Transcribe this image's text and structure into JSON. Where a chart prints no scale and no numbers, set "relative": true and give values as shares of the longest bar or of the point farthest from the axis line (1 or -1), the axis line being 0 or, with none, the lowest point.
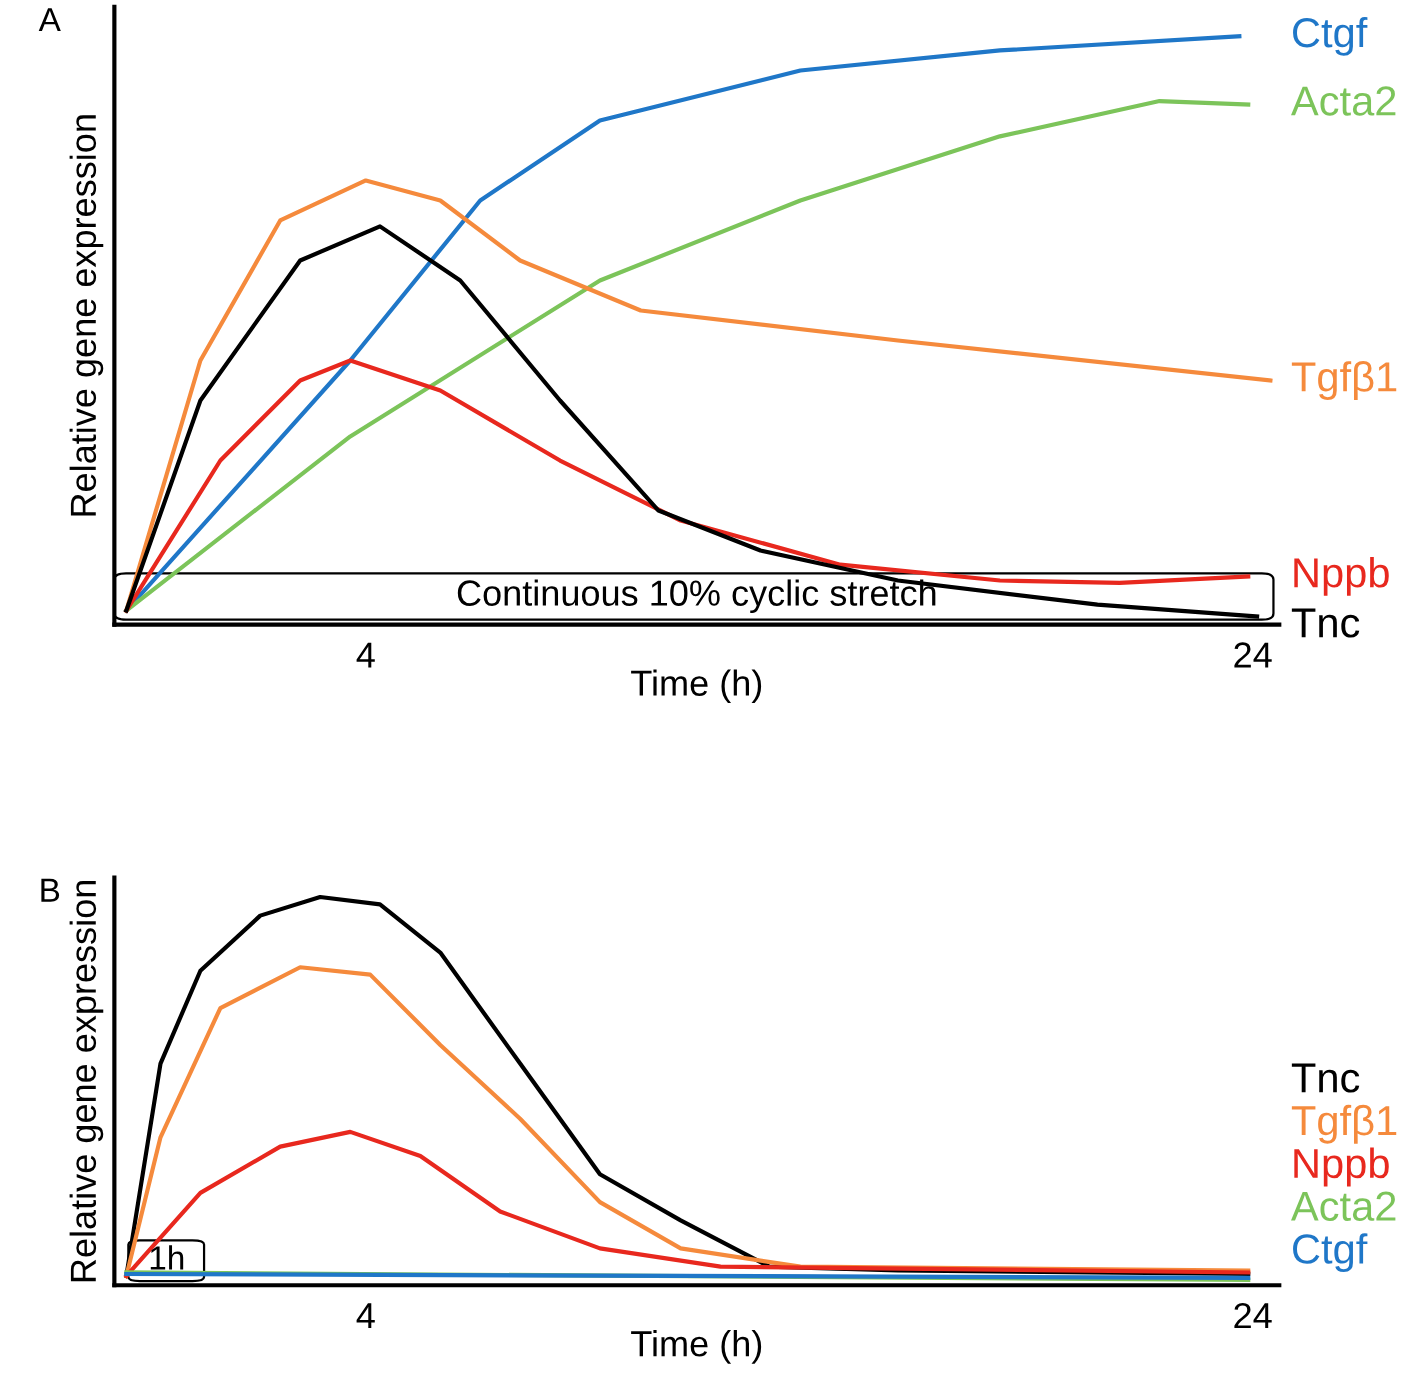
{
  "chart_data": [
    {
      "type": "line",
      "title": "A",
      "xlabel": "Time (h)",
      "ylabel": "Relative gene expression",
      "relative": true,
      "xlim": [
        -1.67,
        24.6
      ],
      "xticks": [
        4,
        24
      ],
      "grid": false,
      "legend": false,
      "marker": "none",
      "line_style": "solid",
      "annotations": [
        "Continuous 10% cyclic stretch"
      ],
      "series": [
        {
          "name": "Ctgf",
          "color": "#1f77c8",
          "x": [
            -1.4,
            3.65,
            6.58,
            9.28,
            13.8,
            18.3,
            23.7
          ],
          "values": [
            0.024,
            0.449,
            0.721,
            0.857,
            0.942,
            0.976,
            1.0
          ]
        },
        {
          "name": "Acta2",
          "color": "#7cc45a",
          "x": [
            -1.4,
            3.65,
            9.28,
            13.8,
            18.3,
            21.9,
            23.9
          ],
          "values": [
            0.024,
            0.32,
            0.585,
            0.721,
            0.83,
            0.89,
            0.884
          ]
        },
        {
          "name": "Tgfβ1",
          "color": "#f58a3c",
          "x": [
            -1.4,
            0.27,
            2.07,
            4.0,
            5.68,
            7.48,
            10.2,
            16.0,
            24.4
          ],
          "values": [
            0.024,
            0.449,
            0.687,
            0.755,
            0.721,
            0.619,
            0.534,
            0.483,
            0.415
          ]
        },
        {
          "name": "Nppb",
          "color": "#e8281e",
          "x": [
            -1.4,
            0.72,
            2.52,
            3.65,
            5.68,
            8.38,
            11.1,
            14.7,
            18.3,
            21.0,
            23.9
          ],
          "values": [
            0.024,
            0.279,
            0.415,
            0.449,
            0.398,
            0.279,
            0.177,
            0.102,
            0.075,
            0.071,
            0.082
          ]
        },
        {
          "name": "Tnc",
          "color": "#000000",
          "x": [
            -1.4,
            0.27,
            2.52,
            4.32,
            6.13,
            8.38,
            10.6,
            12.9,
            16.0,
            20.5,
            24.1
          ],
          "values": [
            0.024,
            0.381,
            0.619,
            0.677,
            0.585,
            0.381,
            0.194,
            0.126,
            0.075,
            0.034,
            0.014
          ]
        }
      ]
    },
    {
      "type": "line",
      "title": "B",
      "xlabel": "Time (h)",
      "ylabel": "Relative gene expression",
      "relative": true,
      "xlim": [
        -1.67,
        24.6
      ],
      "xticks": [
        4,
        24
      ],
      "grid": false,
      "legend": false,
      "marker": "none",
      "line_style": "solid",
      "annotations": [
        "1h"
      ],
      "series": [
        {
          "name": "Tnc",
          "color": "#000000",
          "x": [
            -1.4,
            -0.63,
            0.27,
            1.62,
            2.97,
            4.32,
            5.68,
            7.48,
            9.28,
            11.1,
            13.1,
            16.0,
            23.9
          ],
          "values": [
            0.024,
            0.571,
            0.81,
            0.952,
            1.0,
            0.981,
            0.857,
            0.571,
            0.286,
            0.167,
            0.048,
            0.038,
            0.029
          ]
        },
        {
          "name": "Tgfβ1",
          "color": "#f58a3c",
          "x": [
            -1.4,
            -0.63,
            0.72,
            2.52,
            4.1,
            5.68,
            7.48,
            9.28,
            11.1,
            13.8,
            23.9
          ],
          "values": [
            0.024,
            0.381,
            0.714,
            0.819,
            0.8,
            0.619,
            0.429,
            0.214,
            0.095,
            0.048,
            0.038
          ]
        },
        {
          "name": "Nppb",
          "color": "#e8281e",
          "x": [
            -1.4,
            0.27,
            2.07,
            3.65,
            5.23,
            7.03,
            9.28,
            12.0,
            23.9
          ],
          "values": [
            0.024,
            0.238,
            0.357,
            0.395,
            0.333,
            0.19,
            0.095,
            0.048,
            0.033
          ]
        },
        {
          "name": "Acta2",
          "color": "#7cc45a",
          "x": [
            -1.4,
            23.9
          ],
          "values": [
            0.033,
            0.014
          ]
        },
        {
          "name": "Ctgf",
          "color": "#1f77c8",
          "x": [
            -1.4,
            23.9
          ],
          "values": [
            0.029,
            0.019
          ]
        }
      ]
    }
  ]
}
